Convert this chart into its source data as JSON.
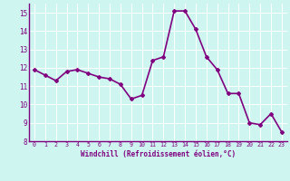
{
  "x": [
    0,
    1,
    2,
    3,
    4,
    5,
    6,
    7,
    8,
    9,
    10,
    11,
    12,
    13,
    14,
    15,
    16,
    17,
    18,
    19,
    20,
    21,
    22,
    23
  ],
  "y": [
    11.9,
    11.6,
    11.3,
    11.8,
    11.9,
    11.7,
    11.5,
    11.4,
    11.1,
    10.3,
    10.5,
    12.4,
    12.6,
    15.1,
    15.1,
    14.1,
    12.6,
    11.9,
    10.6,
    10.6,
    9.0,
    8.9,
    9.5,
    8.5
  ],
  "line_color": "#800080",
  "marker": "D",
  "marker_size": 2,
  "bg_color": "#cef5f0",
  "grid_color": "#ffffff",
  "xlabel": "Windchill (Refroidissement éolien,°C)",
  "xlabel_color": "#800080",
  "tick_color": "#800080",
  "ylim": [
    8,
    15.5
  ],
  "xlim": [
    -0.5,
    23.5
  ],
  "yticks": [
    8,
    9,
    10,
    11,
    12,
    13,
    14,
    15
  ],
  "xticks": [
    0,
    1,
    2,
    3,
    4,
    5,
    6,
    7,
    8,
    9,
    10,
    11,
    12,
    13,
    14,
    15,
    16,
    17,
    18,
    19,
    20,
    21,
    22,
    23
  ],
  "linewidth": 1.2
}
